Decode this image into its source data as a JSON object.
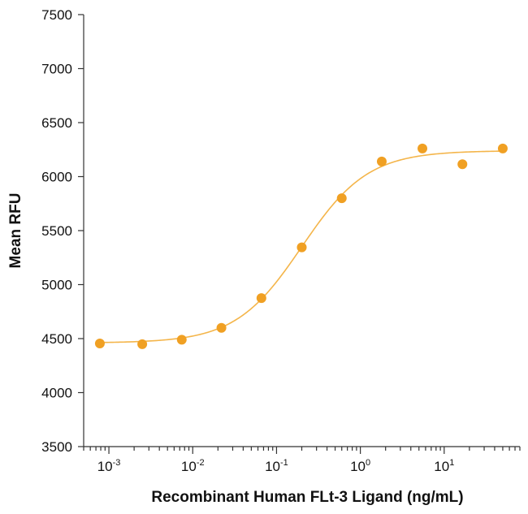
{
  "chart_data": {
    "type": "scatter",
    "title": "",
    "xlabel": "Recombinant Human FLt-3 Ligand (ng/mL)",
    "ylabel": "Mean RFU",
    "x_scale": "log",
    "xlim": [
      0.0005,
      80
    ],
    "ylim": [
      3500,
      7500
    ],
    "y_ticks": [
      3500,
      4000,
      4500,
      5000,
      5500,
      6000,
      6500,
      7000,
      7500
    ],
    "x_ticks": [
      {
        "value": 0.001,
        "base": "10",
        "exp": "-3"
      },
      {
        "value": 0.01,
        "base": "10",
        "exp": "-2"
      },
      {
        "value": 0.1,
        "base": "10",
        "exp": "-1"
      },
      {
        "value": 1,
        "base": "10",
        "exp": "0"
      },
      {
        "value": 10,
        "base": "10",
        "exp": "1"
      }
    ],
    "grid": false,
    "legend": "none",
    "colors": {
      "marker": "#F0A023",
      "curve": "#F4B54A",
      "axis": "#333333"
    },
    "series": [
      {
        "points": [
          {
            "x": 0.00078,
            "y": 4455
          },
          {
            "x": 0.0025,
            "y": 4448
          },
          {
            "x": 0.0074,
            "y": 4490
          },
          {
            "x": 0.022,
            "y": 4600
          },
          {
            "x": 0.066,
            "y": 4875
          },
          {
            "x": 0.2,
            "y": 5345
          },
          {
            "x": 0.6,
            "y": 5800
          },
          {
            "x": 1.8,
            "y": 6140
          },
          {
            "x": 5.5,
            "y": 6260
          },
          {
            "x": 16.5,
            "y": 6115
          },
          {
            "x": 50,
            "y": 6260
          }
        ],
        "fit": {
          "model": "4PL",
          "bottom": 4460,
          "top": 6240,
          "ec50": 0.2,
          "hill": 1.1
        }
      }
    ]
  }
}
